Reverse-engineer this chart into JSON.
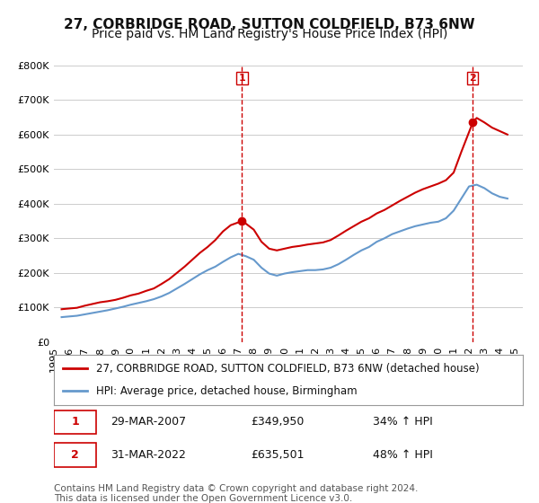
{
  "title": "27, CORBRIDGE ROAD, SUTTON COLDFIELD, B73 6NW",
  "subtitle": "Price paid vs. HM Land Registry's House Price Index (HPI)",
  "legend_label_red": "27, CORBRIDGE ROAD, SUTTON COLDFIELD, B73 6NW (detached house)",
  "legend_label_blue": "HPI: Average price, detached house, Birmingham",
  "footer": "Contains HM Land Registry data © Crown copyright and database right 2024.\nThis data is licensed under the Open Government Licence v3.0.",
  "point1_label": "1",
  "point1_date": "29-MAR-2007",
  "point1_price": "£349,950",
  "point1_hpi": "34% ↑ HPI",
  "point1_year": 2007.24,
  "point1_value": 349950,
  "point2_label": "2",
  "point2_date": "31-MAR-2022",
  "point2_price": "£635,501",
  "point2_hpi": "48% ↑ HPI",
  "point2_year": 2022.25,
  "point2_value": 635501,
  "red_x": [
    1995.5,
    1996.0,
    1996.5,
    1997.0,
    1997.5,
    1998.0,
    1998.5,
    1999.0,
    1999.5,
    2000.0,
    2000.5,
    2001.0,
    2001.5,
    2002.0,
    2002.5,
    2003.0,
    2003.5,
    2004.0,
    2004.5,
    2005.0,
    2005.5,
    2006.0,
    2006.5,
    2007.24,
    2007.5,
    2008.0,
    2008.5,
    2009.0,
    2009.5,
    2010.0,
    2010.5,
    2011.0,
    2011.5,
    2012.0,
    2012.5,
    2013.0,
    2013.5,
    2014.0,
    2014.5,
    2015.0,
    2015.5,
    2016.0,
    2016.5,
    2017.0,
    2017.5,
    2018.0,
    2018.5,
    2019.0,
    2019.5,
    2020.0,
    2020.5,
    2021.0,
    2021.5,
    2022.25,
    2022.5,
    2023.0,
    2023.5,
    2024.0,
    2024.5
  ],
  "red_y": [
    95000,
    97000,
    99000,
    105000,
    110000,
    115000,
    118000,
    122000,
    128000,
    135000,
    140000,
    148000,
    155000,
    168000,
    182000,
    200000,
    218000,
    238000,
    258000,
    275000,
    295000,
    320000,
    338000,
    349950,
    342000,
    325000,
    290000,
    270000,
    265000,
    270000,
    275000,
    278000,
    282000,
    285000,
    288000,
    295000,
    308000,
    322000,
    335000,
    348000,
    358000,
    372000,
    382000,
    395000,
    408000,
    420000,
    432000,
    442000,
    450000,
    458000,
    468000,
    490000,
    550000,
    635501,
    648000,
    635000,
    620000,
    610000,
    600000
  ],
  "blue_x": [
    1995.5,
    1996.0,
    1996.5,
    1997.0,
    1997.5,
    1998.0,
    1998.5,
    1999.0,
    1999.5,
    2000.0,
    2000.5,
    2001.0,
    2001.5,
    2002.0,
    2002.5,
    2003.0,
    2003.5,
    2004.0,
    2004.5,
    2005.0,
    2005.5,
    2006.0,
    2006.5,
    2007.0,
    2007.5,
    2008.0,
    2008.5,
    2009.0,
    2009.5,
    2010.0,
    2010.5,
    2011.0,
    2011.5,
    2012.0,
    2012.5,
    2013.0,
    2013.5,
    2014.0,
    2014.5,
    2015.0,
    2015.5,
    2016.0,
    2016.5,
    2017.0,
    2017.5,
    2018.0,
    2018.5,
    2019.0,
    2019.5,
    2020.0,
    2020.5,
    2021.0,
    2021.5,
    2022.0,
    2022.5,
    2023.0,
    2023.5,
    2024.0,
    2024.5
  ],
  "blue_y": [
    72000,
    74000,
    76000,
    80000,
    84000,
    88000,
    92000,
    97000,
    102000,
    108000,
    113000,
    118000,
    124000,
    132000,
    142000,
    155000,
    168000,
    182000,
    196000,
    208000,
    218000,
    232000,
    245000,
    255000,
    248000,
    238000,
    215000,
    198000,
    192000,
    198000,
    202000,
    205000,
    208000,
    208000,
    210000,
    215000,
    225000,
    238000,
    252000,
    265000,
    275000,
    290000,
    300000,
    312000,
    320000,
    328000,
    335000,
    340000,
    345000,
    348000,
    358000,
    380000,
    415000,
    450000,
    455000,
    445000,
    430000,
    420000,
    415000
  ],
  "ylim": [
    0,
    800000
  ],
  "xlim": [
    1995.0,
    2025.5
  ],
  "yticks": [
    0,
    100000,
    200000,
    300000,
    400000,
    500000,
    600000,
    700000,
    800000
  ],
  "xticks": [
    1995,
    1996,
    1997,
    1998,
    1999,
    2000,
    2001,
    2002,
    2003,
    2004,
    2005,
    2006,
    2007,
    2008,
    2009,
    2010,
    2011,
    2012,
    2013,
    2014,
    2015,
    2016,
    2017,
    2018,
    2019,
    2020,
    2021,
    2022,
    2023,
    2024,
    2025
  ],
  "bg_color": "#ffffff",
  "grid_color": "#cccccc",
  "red_color": "#cc0000",
  "blue_color": "#6699cc",
  "dashed_color": "#cc0000",
  "title_fontsize": 11,
  "subtitle_fontsize": 10,
  "tick_fontsize": 8,
  "legend_fontsize": 8.5,
  "footer_fontsize": 7.5
}
